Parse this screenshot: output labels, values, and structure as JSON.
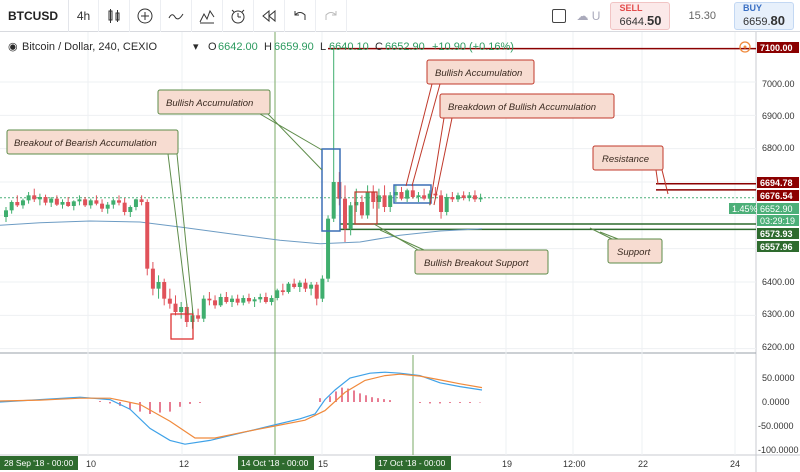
{
  "toolbar": {
    "symbol": "BTCUSD",
    "interval": "4h",
    "checkbox_label": "U",
    "sell_label": "SELL",
    "sell_price_main": "6644.",
    "sell_price_tail": "50",
    "spread": "15.30",
    "buy_label": "BUY",
    "buy_price_main": "6659.",
    "buy_price_tail": "80",
    "icons": [
      "candles-icon",
      "add-indicator-icon",
      "line-tool-icon",
      "pattern-icon",
      "alert-icon",
      "rewind-icon",
      "undo-icon",
      "redo-icon"
    ]
  },
  "legend": {
    "title": "Bitcoin / Dollar, 240, CEXIO",
    "open_label": "O",
    "open_value": "6642.00",
    "high_label": "H",
    "high_value": "6659.90",
    "low_label": "L",
    "low_value": "6640.10",
    "close_label": "C",
    "close_value": "6652.90",
    "change": "+10.90 (+0.16%)"
  },
  "price_axis": {
    "ticks": [
      "7000.00",
      "6900.00",
      "6800.00",
      "6400.00",
      "6300.00",
      "6200.00"
    ],
    "labels": [
      {
        "text": "7100.00",
        "color": "#8b0000"
      },
      {
        "text": "6694.78",
        "color": "#8b0000"
      },
      {
        "text": "6676.54",
        "color": "#8b0000"
      },
      {
        "text": "6652.90",
        "color": "#4caf78"
      },
      {
        "text": "03:29:19",
        "color": "#4caf78"
      },
      {
        "text": "6573.93",
        "color": "#2e6b2e"
      },
      {
        "text": "6557.96",
        "color": "#2e6b2e"
      }
    ],
    "percent_badge": "1.45%"
  },
  "macd_axis": {
    "ticks": [
      "50.0000",
      "0.0000",
      "-50.0000",
      "-100.0000"
    ]
  },
  "time_axis": {
    "ticks": [
      "10",
      "12",
      "15",
      "19",
      "12:00",
      "22",
      "24"
    ],
    "highlights": [
      "28 Sep '18 - 00:00",
      "14 Oct '18 - 00:00",
      "17 Oct '18 - 00:00"
    ]
  },
  "annotations": [
    {
      "text": "Breakout of Bearish Accumulation",
      "type": "callout"
    },
    {
      "text": "Bullish Accumulation",
      "type": "callout"
    },
    {
      "text": "Bullish Accumulation",
      "type": "callout"
    },
    {
      "text": "Breakdown of Bullish Accumulation",
      "type": "callout"
    },
    {
      "text": "Resistance",
      "type": "callout"
    },
    {
      "text": "Bullish Breakout Support",
      "type": "callout"
    },
    {
      "text": "Support",
      "type": "callout"
    }
  ],
  "chart_data": {
    "type": "candlestick",
    "series_name": "Bitcoin / Dollar, 240, CEXIO",
    "y_range": [
      6190,
      7150
    ],
    "levels": {
      "resistance_high": 6694.78,
      "resistance_low": 6676.54,
      "support_high": 6573.93,
      "support_low": 6557.96,
      "spike_high": 7100.0,
      "last_price": 6652.9
    },
    "colors": {
      "up": "#3fae6e",
      "down": "#e0525a",
      "ma": "#5b8db8",
      "macd": "#4da6e8",
      "signal": "#f08a3c",
      "hist": "#e0506e"
    }
  }
}
